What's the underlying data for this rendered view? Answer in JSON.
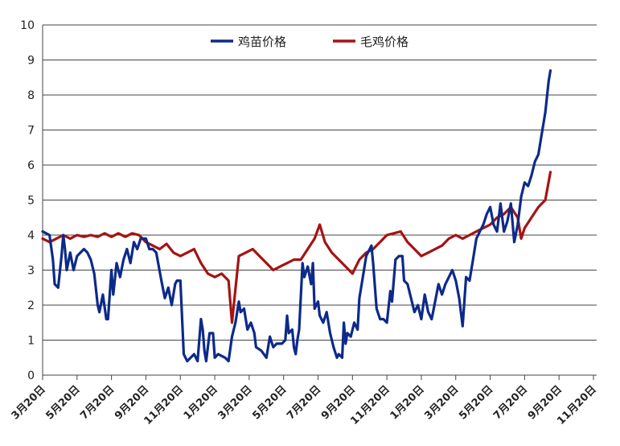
{
  "chart_data": {
    "type": "line",
    "title": "",
    "xlabel": "",
    "ylabel": "",
    "ylim": [
      0,
      10
    ],
    "yticks": [
      "0",
      "1",
      "2",
      "3",
      "4",
      "5",
      "6",
      "7",
      "8",
      "9",
      "10"
    ],
    "grid": "horizontal",
    "legend_position": "top",
    "x_tick_labels": [
      "3月20日",
      "5月20日",
      "7月20日",
      "9月20日",
      "11月20日",
      "1月20日",
      "3月20日",
      "5月20日",
      "7月20日",
      "9月20日",
      "11月20日",
      "1月20日",
      "3月20日",
      "5月20日",
      "7月20日",
      "9月20日",
      "11月20日"
    ],
    "series": [
      {
        "name": "鸡苗价格",
        "color": "#0d2a8a",
        "points": [
          [
            0,
            4.1
          ],
          [
            0.2,
            4.0
          ],
          [
            0.3,
            3.3
          ],
          [
            0.35,
            2.6
          ],
          [
            0.45,
            2.5
          ],
          [
            0.55,
            3.4
          ],
          [
            0.6,
            4.0
          ],
          [
            0.65,
            3.6
          ],
          [
            0.7,
            3.0
          ],
          [
            0.8,
            3.5
          ],
          [
            0.9,
            3.0
          ],
          [
            1.0,
            3.4
          ],
          [
            1.1,
            3.5
          ],
          [
            1.2,
            3.6
          ],
          [
            1.3,
            3.5
          ],
          [
            1.4,
            3.3
          ],
          [
            1.5,
            2.9
          ],
          [
            1.6,
            2.0
          ],
          [
            1.65,
            1.8
          ],
          [
            1.75,
            2.3
          ],
          [
            1.85,
            1.6
          ],
          [
            1.9,
            1.6
          ],
          [
            2.0,
            3.0
          ],
          [
            2.05,
            2.3
          ],
          [
            2.15,
            3.2
          ],
          [
            2.25,
            2.8
          ],
          [
            2.35,
            3.3
          ],
          [
            2.45,
            3.6
          ],
          [
            2.55,
            3.2
          ],
          [
            2.65,
            3.8
          ],
          [
            2.75,
            3.6
          ],
          [
            2.85,
            3.9
          ],
          [
            3.0,
            3.9
          ],
          [
            3.1,
            3.6
          ],
          [
            3.2,
            3.6
          ],
          [
            3.3,
            3.5
          ],
          [
            3.45,
            2.7
          ],
          [
            3.55,
            2.2
          ],
          [
            3.65,
            2.5
          ],
          [
            3.75,
            2.0
          ],
          [
            3.85,
            2.6
          ],
          [
            3.9,
            2.7
          ],
          [
            4.0,
            2.7
          ],
          [
            4.1,
            0.6
          ],
          [
            4.2,
            0.4
          ],
          [
            4.3,
            0.5
          ],
          [
            4.4,
            0.6
          ],
          [
            4.5,
            0.4
          ],
          [
            4.6,
            1.6
          ],
          [
            4.65,
            1.3
          ],
          [
            4.7,
            0.7
          ],
          [
            4.75,
            0.4
          ],
          [
            4.85,
            1.2
          ],
          [
            4.95,
            1.2
          ],
          [
            5.0,
            0.5
          ],
          [
            5.1,
            0.6
          ],
          [
            5.3,
            0.5
          ],
          [
            5.4,
            0.4
          ],
          [
            5.5,
            1.1
          ],
          [
            5.6,
            1.5
          ],
          [
            5.7,
            2.1
          ],
          [
            5.75,
            1.8
          ],
          [
            5.85,
            1.9
          ],
          [
            5.95,
            1.3
          ],
          [
            6.05,
            1.5
          ],
          [
            6.15,
            1.2
          ],
          [
            6.2,
            0.8
          ],
          [
            6.35,
            0.7
          ],
          [
            6.5,
            0.5
          ],
          [
            6.6,
            1.1
          ],
          [
            6.7,
            0.8
          ],
          [
            6.8,
            0.9
          ],
          [
            6.95,
            0.9
          ],
          [
            7.05,
            1.0
          ],
          [
            7.1,
            1.7
          ],
          [
            7.15,
            1.2
          ],
          [
            7.25,
            1.3
          ],
          [
            7.3,
            0.8
          ],
          [
            7.35,
            0.6
          ],
          [
            7.4,
            1.0
          ],
          [
            7.45,
            1.3
          ],
          [
            7.55,
            3.2
          ],
          [
            7.6,
            2.8
          ],
          [
            7.7,
            3.1
          ],
          [
            7.8,
            2.6
          ],
          [
            7.85,
            3.2
          ],
          [
            7.9,
            1.9
          ],
          [
            8.0,
            2.1
          ],
          [
            8.05,
            1.7
          ],
          [
            8.15,
            1.5
          ],
          [
            8.25,
            1.8
          ],
          [
            8.35,
            1.2
          ],
          [
            8.45,
            0.8
          ],
          [
            8.55,
            0.5
          ],
          [
            8.6,
            0.6
          ],
          [
            8.7,
            0.5
          ],
          [
            8.75,
            1.5
          ],
          [
            8.8,
            0.9
          ],
          [
            8.85,
            1.2
          ],
          [
            8.95,
            1.1
          ],
          [
            9.05,
            1.5
          ],
          [
            9.15,
            1.3
          ],
          [
            9.2,
            2.2
          ],
          [
            9.3,
            2.8
          ],
          [
            9.4,
            3.4
          ],
          [
            9.5,
            3.6
          ],
          [
            9.55,
            3.7
          ],
          [
            9.6,
            3.2
          ],
          [
            9.7,
            1.9
          ],
          [
            9.8,
            1.6
          ],
          [
            9.9,
            1.6
          ],
          [
            10.0,
            1.5
          ],
          [
            10.1,
            2.4
          ],
          [
            10.15,
            2.1
          ],
          [
            10.25,
            3.3
          ],
          [
            10.35,
            3.4
          ],
          [
            10.45,
            3.4
          ],
          [
            10.5,
            2.7
          ],
          [
            10.6,
            2.6
          ],
          [
            10.7,
            2.2
          ],
          [
            10.8,
            1.8
          ],
          [
            10.9,
            2.0
          ],
          [
            11.0,
            1.6
          ],
          [
            11.1,
            2.3
          ],
          [
            11.2,
            1.8
          ],
          [
            11.3,
            1.6
          ],
          [
            11.4,
            2.1
          ],
          [
            11.5,
            2.6
          ],
          [
            11.6,
            2.3
          ],
          [
            11.7,
            2.6
          ],
          [
            11.8,
            2.8
          ],
          [
            11.9,
            3.0
          ],
          [
            12.0,
            2.7
          ],
          [
            12.1,
            2.2
          ],
          [
            12.2,
            1.4
          ],
          [
            12.3,
            2.8
          ],
          [
            12.4,
            2.7
          ],
          [
            12.5,
            3.3
          ],
          [
            12.6,
            3.9
          ],
          [
            12.7,
            4.1
          ],
          [
            12.8,
            4.3
          ],
          [
            12.9,
            4.6
          ],
          [
            13.0,
            4.8
          ],
          [
            13.1,
            4.3
          ],
          [
            13.2,
            4.1
          ],
          [
            13.3,
            4.9
          ],
          [
            13.4,
            4.1
          ],
          [
            13.5,
            4.4
          ],
          [
            13.6,
            4.9
          ],
          [
            13.7,
            3.8
          ],
          [
            13.8,
            4.3
          ],
          [
            13.9,
            5.1
          ],
          [
            14.0,
            5.5
          ],
          [
            14.1,
            5.4
          ],
          [
            14.2,
            5.7
          ],
          [
            14.3,
            6.1
          ],
          [
            14.4,
            6.3
          ],
          [
            14.5,
            6.9
          ],
          [
            14.6,
            7.5
          ],
          [
            14.7,
            8.4
          ],
          [
            14.75,
            8.7
          ]
        ]
      },
      {
        "name": "毛鸡价格",
        "color": "#a51313",
        "points": [
          [
            0,
            3.9
          ],
          [
            0.2,
            3.8
          ],
          [
            0.4,
            3.9
          ],
          [
            0.6,
            4.0
          ],
          [
            0.8,
            3.9
          ],
          [
            1.0,
            4.0
          ],
          [
            1.2,
            3.95
          ],
          [
            1.4,
            4.0
          ],
          [
            1.6,
            3.95
          ],
          [
            1.8,
            4.05
          ],
          [
            2.0,
            3.95
          ],
          [
            2.2,
            4.05
          ],
          [
            2.4,
            3.95
          ],
          [
            2.6,
            4.05
          ],
          [
            2.8,
            4.0
          ],
          [
            3.0,
            3.8
          ],
          [
            3.2,
            3.7
          ],
          [
            3.4,
            3.6
          ],
          [
            3.6,
            3.75
          ],
          [
            3.8,
            3.5
          ],
          [
            4.0,
            3.4
          ],
          [
            4.2,
            3.5
          ],
          [
            4.4,
            3.6
          ],
          [
            4.6,
            3.2
          ],
          [
            4.8,
            2.9
          ],
          [
            5.0,
            2.8
          ],
          [
            5.2,
            2.9
          ],
          [
            5.4,
            2.7
          ],
          [
            5.5,
            1.5
          ],
          [
            5.7,
            3.4
          ],
          [
            5.9,
            3.5
          ],
          [
            6.1,
            3.6
          ],
          [
            6.3,
            3.4
          ],
          [
            6.5,
            3.2
          ],
          [
            6.7,
            3.0
          ],
          [
            6.9,
            3.1
          ],
          [
            7.1,
            3.2
          ],
          [
            7.3,
            3.3
          ],
          [
            7.5,
            3.3
          ],
          [
            7.7,
            3.6
          ],
          [
            7.9,
            3.9
          ],
          [
            8.05,
            4.3
          ],
          [
            8.2,
            3.8
          ],
          [
            8.4,
            3.5
          ],
          [
            8.6,
            3.3
          ],
          [
            8.8,
            3.1
          ],
          [
            9.0,
            2.9
          ],
          [
            9.2,
            3.3
          ],
          [
            9.4,
            3.5
          ],
          [
            9.6,
            3.6
          ],
          [
            9.8,
            3.8
          ],
          [
            10.0,
            4.0
          ],
          [
            10.2,
            4.05
          ],
          [
            10.4,
            4.1
          ],
          [
            10.6,
            3.8
          ],
          [
            10.8,
            3.6
          ],
          [
            11.0,
            3.4
          ],
          [
            11.2,
            3.5
          ],
          [
            11.4,
            3.6
          ],
          [
            11.6,
            3.7
          ],
          [
            11.8,
            3.9
          ],
          [
            12.0,
            4.0
          ],
          [
            12.2,
            3.9
          ],
          [
            12.4,
            4.0
          ],
          [
            12.6,
            4.1
          ],
          [
            12.8,
            4.2
          ],
          [
            13.0,
            4.3
          ],
          [
            13.2,
            4.5
          ],
          [
            13.4,
            4.6
          ],
          [
            13.6,
            4.8
          ],
          [
            13.8,
            4.5
          ],
          [
            13.9,
            3.9
          ],
          [
            14.0,
            4.2
          ],
          [
            14.2,
            4.5
          ],
          [
            14.4,
            4.8
          ],
          [
            14.6,
            5.0
          ],
          [
            14.75,
            5.8
          ]
        ]
      }
    ]
  }
}
